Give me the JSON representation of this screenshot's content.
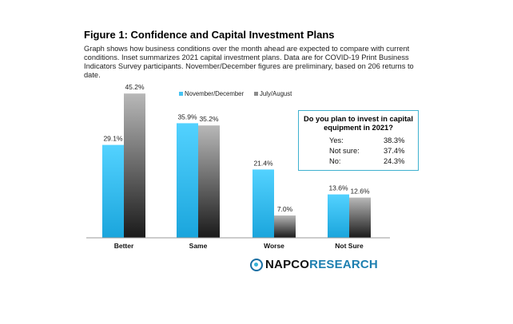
{
  "header": {
    "title": "Figure 1: Confidence and Capital Investment Plans",
    "subtitle": "Graph shows how business conditions over the month ahead are expected to compare with current conditions. Inset summarizes 2021 capital investment plans. Data are for COVID-19 Print Business Indicators Survey participants. November/December figures are preliminary, based on 206 returns to date."
  },
  "chart_data": {
    "type": "bar",
    "categories": [
      "Better",
      "Same",
      "Worse",
      "Not Sure"
    ],
    "series": [
      {
        "name": "November/December",
        "values": [
          29.1,
          35.9,
          21.4,
          13.6
        ],
        "labels": [
          "29.1%",
          "35.9%",
          "21.4%",
          "13.6%"
        ],
        "color": "#47c3f2"
      },
      {
        "name": "July/August",
        "values": [
          45.2,
          35.2,
          7.0,
          12.6
        ],
        "labels": [
          "45.2%",
          "35.2%",
          "7.0%",
          "12.6%"
        ],
        "color": "#8c8c8c"
      }
    ],
    "legend_position": "top",
    "grid": false,
    "ylim": [
      0,
      50
    ]
  },
  "inset": {
    "question": "Do you plan to invest in capital equipment in 2021?",
    "rows": [
      {
        "label": "Yes:",
        "value": "38.3%"
      },
      {
        "label": "Not sure:",
        "value": "37.4%"
      },
      {
        "label": "No:",
        "value": "24.3%"
      }
    ]
  },
  "logo": {
    "part1": "NAPCO",
    "part2": "RESEARCH",
    "text": "NAPCO RESEARCH"
  },
  "colors": {
    "accent": "#3fb1cf",
    "brand": "#1d7fb0"
  }
}
